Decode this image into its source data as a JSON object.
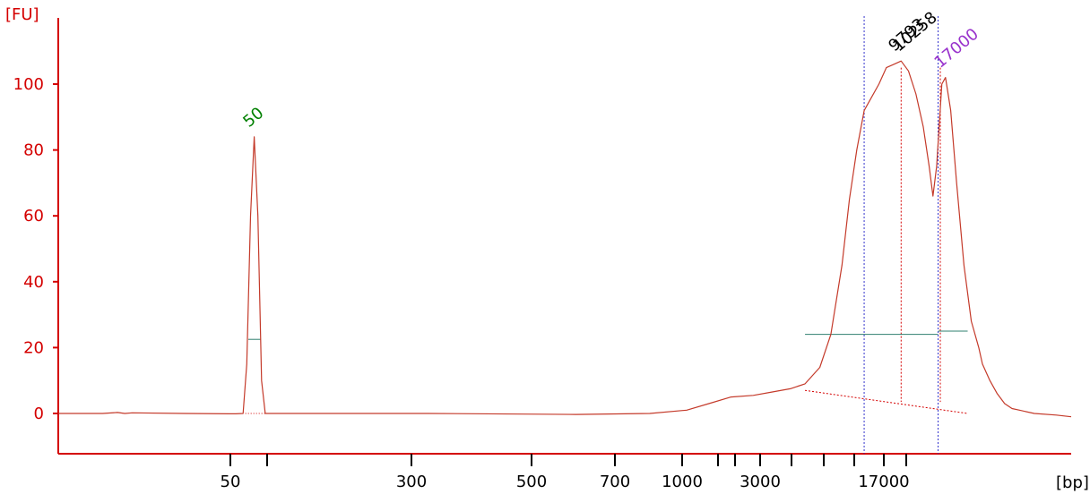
{
  "chart_data": {
    "type": "line",
    "title": "",
    "ylabel": "[FU]",
    "xlabel": "[bp]",
    "ylim": [
      -12,
      116
    ],
    "y_ticks": [
      0,
      20,
      40,
      60,
      80,
      100
    ],
    "y_tick_labels": [
      "0",
      "20",
      "40",
      "60",
      "80",
      "100"
    ],
    "x_tick_labels": [
      "50",
      "300",
      "500",
      "700",
      "1000",
      "3000",
      "17000"
    ],
    "x_unlabeled_tick_count": 7,
    "grid": false,
    "series": [
      {
        "points": [
          [
            0,
            0
          ],
          [
            6,
            0
          ],
          [
            8,
            0.3
          ],
          [
            9,
            0
          ],
          [
            10,
            0.2
          ],
          [
            17,
            0
          ],
          [
            24,
            -0.1
          ],
          [
            25,
            0
          ],
          [
            25.5,
            15
          ],
          [
            26,
            60
          ],
          [
            26.5,
            84
          ],
          [
            27,
            60
          ],
          [
            27.5,
            10
          ],
          [
            28,
            0
          ],
          [
            30,
            0
          ],
          [
            50,
            0
          ],
          [
            70,
            -0.3
          ],
          [
            80,
            0
          ],
          [
            85,
            1
          ],
          [
            88,
            3
          ],
          [
            91,
            5
          ],
          [
            94,
            5.5
          ],
          [
            96.5,
            6.5
          ],
          [
            99,
            7.5
          ],
          [
            101,
            9
          ],
          [
            103,
            14
          ],
          [
            104.5,
            24
          ],
          [
            106,
            45
          ],
          [
            107,
            65
          ],
          [
            108,
            80
          ],
          [
            109,
            92
          ],
          [
            110,
            96
          ],
          [
            111,
            100
          ],
          [
            112,
            105
          ],
          [
            113,
            106
          ],
          [
            114,
            107
          ],
          [
            115,
            104
          ],
          [
            116,
            97
          ],
          [
            117,
            87
          ],
          [
            117.8,
            75
          ],
          [
            118.3,
            66
          ],
          [
            118.8,
            75
          ],
          [
            119.5,
            100
          ],
          [
            120,
            102
          ],
          [
            120.7,
            92
          ],
          [
            121.5,
            70
          ],
          [
            122.5,
            45
          ],
          [
            123.5,
            28
          ],
          [
            124.5,
            20
          ],
          [
            125,
            15
          ],
          [
            126,
            10
          ],
          [
            127,
            6
          ],
          [
            128,
            3
          ],
          [
            129,
            1.5
          ],
          [
            130,
            1
          ],
          [
            132,
            0
          ],
          [
            135,
            -0.5
          ],
          [
            137,
            -1
          ]
        ]
      }
    ],
    "peaks": [
      {
        "label": "50",
        "x": 26.5,
        "fu": 84,
        "color": "#008000"
      },
      {
        "label": "9793",
        "x": 113.8,
        "fu": 107,
        "color": "#000000"
      },
      {
        "label": "10258",
        "x": 114.4,
        "fu": 107,
        "color": "#000000"
      },
      {
        "label": "17000",
        "x": 120,
        "fu": 102,
        "color": "#9933cc"
      }
    ],
    "baseline": [
      [
        101,
        7
      ],
      [
        123,
        0
      ]
    ],
    "markers": {
      "blue_dotted_x": [
        109,
        119
      ],
      "red_dotted_x": [
        114,
        119.3
      ],
      "ladder_level_50": 22.5,
      "green_levels": [
        24,
        25
      ]
    }
  }
}
